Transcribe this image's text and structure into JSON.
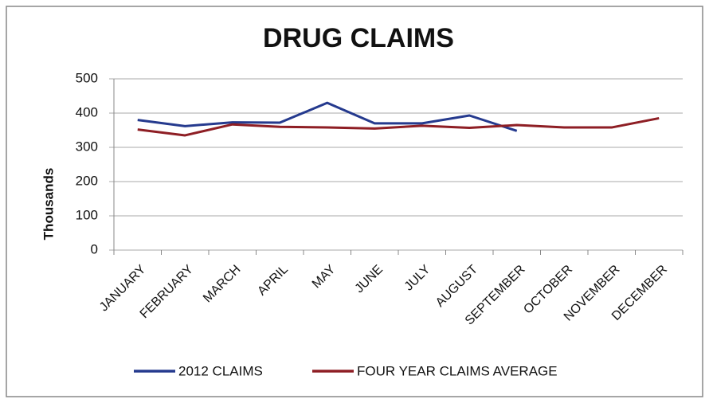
{
  "chart_data": {
    "type": "line",
    "title": "DRUG CLAIMS",
    "y_label": "Thousands",
    "categories": [
      "JANUARY",
      "FEBRUARY",
      "MARCH",
      "APRIL",
      "MAY",
      "JUNE",
      "JULY",
      "AUGUST",
      "SEPTEMBER",
      "OCTOBER",
      "NOVEMBER",
      "DECEMBER"
    ],
    "series": [
      {
        "name": "2012 CLAIMS",
        "color": "#253a8e",
        "values": [
          380,
          362,
          373,
          372,
          430,
          370,
          370,
          393,
          348,
          null,
          null,
          null
        ]
      },
      {
        "name": "FOUR YEAR CLAIMS AVERAGE",
        "color": "#8e1e24",
        "values": [
          352,
          335,
          367,
          360,
          358,
          355,
          363,
          357,
          365,
          358,
          358,
          385
        ]
      }
    ],
    "ylim": [
      0,
      500
    ],
    "yticks": [
      0,
      100,
      200,
      300,
      400,
      500
    ],
    "grid": true,
    "legend": "bottom"
  }
}
